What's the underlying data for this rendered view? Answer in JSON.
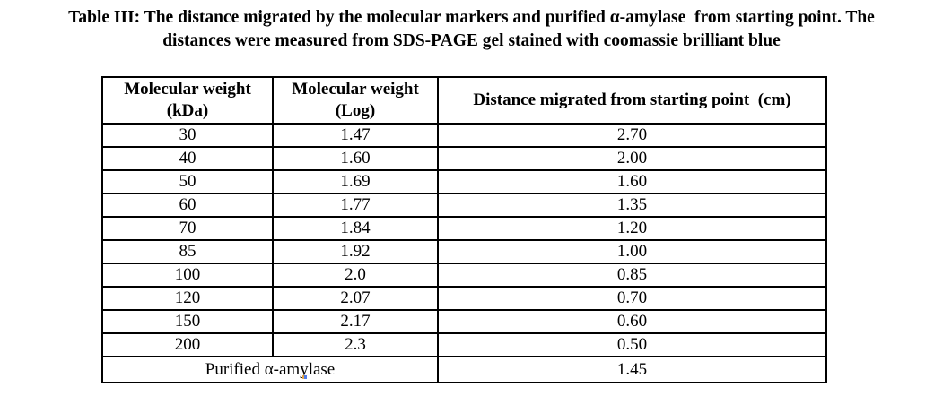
{
  "caption": {
    "line1": "Table III: The distance migrated by the molecular markers and purified α-amylase  from starting point. The",
    "line2": "distances were measured from SDS-PAGE gel stained with coomassie brilliant blue"
  },
  "table": {
    "headers": {
      "col1": "Molecular weight\n(kDa)",
      "col2": "Molecular weight\n(Log)",
      "col3": "Distance migrated from starting point  (cm)"
    },
    "rows": [
      [
        "30",
        "1.47",
        "2.70"
      ],
      [
        "40",
        "1.60",
        "2.00"
      ],
      [
        "50",
        "1.69",
        "1.60"
      ],
      [
        "60",
        "1.77",
        "1.35"
      ],
      [
        "70",
        "1.84",
        "1.20"
      ],
      [
        "85",
        "1.92",
        "1.00"
      ],
      [
        "100",
        "2.0",
        "0.85"
      ],
      [
        "120",
        "2.07",
        "0.70"
      ],
      [
        "150",
        "2.17",
        "0.60"
      ],
      [
        "200",
        "2.3",
        "0.50"
      ]
    ],
    "footer_row": {
      "label": "Purified α-amylase",
      "value": "1.45"
    }
  },
  "colors": {
    "text": "#000000",
    "border": "#000000",
    "background": "#ffffff"
  },
  "chart_data": {
    "type": "table",
    "title": "Table III: The distance migrated by the molecular markers and purified α-amylase from starting point. The distances were measured from SDS-PAGE gel stained with coomassie brilliant blue",
    "columns": [
      "Molecular weight (kDa)",
      "Molecular weight (Log)",
      "Distance migrated from starting point (cm)"
    ],
    "molecular_weight_kda": [
      30,
      40,
      50,
      60,
      70,
      85,
      100,
      120,
      150,
      200
    ],
    "molecular_weight_log": [
      1.47,
      1.6,
      1.69,
      1.77,
      1.84,
      1.92,
      2.0,
      2.07,
      2.17,
      2.3
    ],
    "distance_migrated_cm": [
      2.7,
      2.0,
      1.6,
      1.35,
      1.2,
      1.0,
      0.85,
      0.7,
      0.6,
      0.5
    ],
    "purified_alpha_amylase_distance_cm": 1.45
  }
}
